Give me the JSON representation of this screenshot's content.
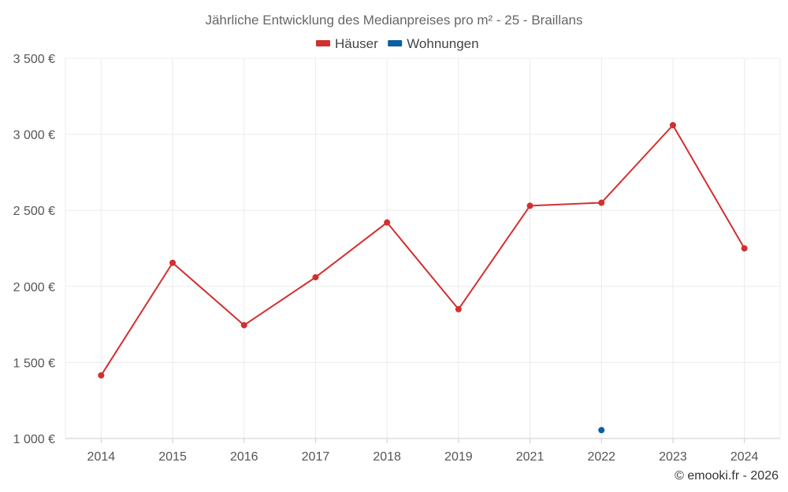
{
  "chart_data": {
    "type": "line",
    "title": "Jährliche Entwicklung des Medianpreises pro m² - 25 - Braillans",
    "categories": [
      "2014",
      "2015",
      "2016",
      "2017",
      "2018",
      "2019",
      "2021",
      "2022",
      "2023",
      "2024"
    ],
    "series": [
      {
        "name": "Häuser",
        "color": "#d32f2f",
        "values": [
          1415,
          2155,
          1745,
          2060,
          2420,
          1850,
          2530,
          2550,
          3060,
          2250
        ]
      },
      {
        "name": "Wohnungen",
        "color": "#0d5fa0",
        "values": [
          null,
          null,
          null,
          null,
          null,
          null,
          null,
          1055,
          null,
          null
        ]
      }
    ],
    "ylim": [
      1000,
      3500
    ],
    "yticks": [
      1000,
      1500,
      2000,
      2500,
      3000,
      3500
    ],
    "ytick_labels": [
      "1 000 €",
      "1 500 €",
      "2 000 €",
      "2 500 €",
      "3 000 €",
      "3 500 €"
    ],
    "xlabel": "",
    "ylabel": "",
    "grid": true,
    "legend_position": "top-center"
  },
  "credit": "© emooki.fr - 2026"
}
